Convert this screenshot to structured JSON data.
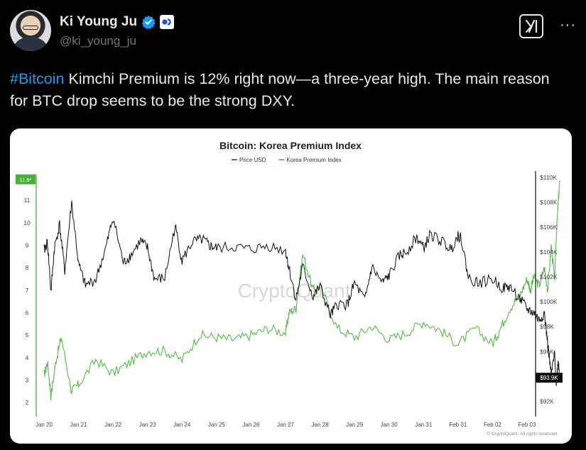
{
  "author": {
    "display_name": "Ki Young Ju",
    "handle": "@ki_young_ju"
  },
  "tweet": {
    "hashtag": "#Bitcoin",
    "text": " Kimchi Premium is 12% right now—a three-year high. The main reason for BTC drop seems to be the strong DXY."
  },
  "icons": {
    "verified": "verified-check-icon",
    "affiliate": "affiliate-badge-icon",
    "grok": "grok-icon",
    "more": "more-dots-icon"
  },
  "colors": {
    "link": "#1d9bf0",
    "verified": "#1d9bf0",
    "premium_line": "#55b94a",
    "price_line": "#111111",
    "premium_callout": "#4caf3c"
  },
  "chart_data": {
    "type": "line",
    "title": "Bitcoin: Korea Premium Index",
    "legend": [
      {
        "name": "Price USD",
        "color": "#111111"
      },
      {
        "name": "Korea Premium Index",
        "color": "#3b5bdb"
      }
    ],
    "watermark": "CryptoQuant",
    "copyright": "© CryptoQuant. All rights reserved",
    "x_tick_labels": [
      "Jan 20",
      "Jan 21",
      "Jan 22",
      "Jan 23",
      "Jan 24",
      "Jan 25",
      "Jan 26",
      "Jan 27",
      "Jan 28",
      "Jan 29",
      "Jan 30",
      "Jan 31",
      "Feb 01",
      "Feb 02",
      "Feb 03"
    ],
    "left_axis": {
      "ticks": [
        2,
        3,
        4,
        5,
        6,
        7,
        8,
        9,
        10,
        11
      ],
      "ylim": [
        1.5,
        12.3
      ],
      "callout": "11.9*"
    },
    "right_axis": {
      "ticks": [
        "$92K",
        "$94K",
        "$96K",
        "$98K",
        "$100K",
        "$102K",
        "$104K",
        "$106K",
        "$108K",
        "$110K"
      ],
      "ylim": [
        91000,
        110500
      ],
      "callout": "$93.9K"
    },
    "series": [
      {
        "name": "Korea Premium Index",
        "axis": "left",
        "x": [
          0,
          0.1,
          0.2,
          0.35,
          0.5,
          0.8,
          1.0,
          1.5,
          2.0,
          2.5,
          3.0,
          3.5,
          4.0,
          4.5,
          5.0,
          5.5,
          6.0,
          6.5,
          7.0,
          7.1,
          7.3,
          7.5,
          7.8,
          8.0,
          8.5,
          9.0,
          9.5,
          10.0,
          10.5,
          11.0,
          11.5,
          12.0,
          12.5,
          13.0,
          13.2,
          13.5,
          13.8,
          14.0,
          14.1,
          14.2,
          14.35,
          14.5,
          14.6,
          14.7,
          14.8,
          14.85,
          14.9,
          14.95
        ],
        "values": [
          3.2,
          3.8,
          2.3,
          3.9,
          4.9,
          2.5,
          2.8,
          3.9,
          3.3,
          3.8,
          4.3,
          4.3,
          3.9,
          5.0,
          4.9,
          4.8,
          5.0,
          5.3,
          5.1,
          6.0,
          6.2,
          8.6,
          7.0,
          7.2,
          5.3,
          4.9,
          5.4,
          4.8,
          5.1,
          5.6,
          5.2,
          4.6,
          5.3,
          4.6,
          5.2,
          6.2,
          6.8,
          7.5,
          7.0,
          7.6,
          7.2,
          8.0,
          7.0,
          9.0,
          7.4,
          9.5,
          10.8,
          11.9
        ]
      },
      {
        "name": "Price USD",
        "axis": "right",
        "x": [
          0,
          0.1,
          0.2,
          0.3,
          0.45,
          0.6,
          0.8,
          1.0,
          1.2,
          1.5,
          1.8,
          2.0,
          2.3,
          2.5,
          2.8,
          3.0,
          3.2,
          3.5,
          3.8,
          4.0,
          4.3,
          4.6,
          4.8,
          5.0,
          5.5,
          6.0,
          6.5,
          7.0,
          7.1,
          7.3,
          7.5,
          7.8,
          8.0,
          8.3,
          8.5,
          8.8,
          9.0,
          9.3,
          9.5,
          9.8,
          10.0,
          10.3,
          10.5,
          10.8,
          11.0,
          11.2,
          11.5,
          11.8,
          12.0,
          12.1,
          12.3,
          12.6,
          13.0,
          13.3,
          13.5,
          13.8,
          14.0,
          14.2,
          14.35,
          14.5,
          14.6,
          14.7,
          14.8,
          14.85,
          14.9,
          14.95
        ],
        "values": [
          104100,
          104800,
          100800,
          104300,
          106200,
          102500,
          108000,
          103000,
          101300,
          101800,
          104400,
          106800,
          103100,
          103700,
          104900,
          104300,
          101800,
          101900,
          106100,
          103300,
          104800,
          105000,
          104500,
          104300,
          104400,
          104200,
          104500,
          104100,
          102700,
          100200,
          102800,
          100400,
          101200,
          98900,
          99800,
          99800,
          101500,
          100100,
          102800,
          101500,
          102100,
          103700,
          104000,
          105200,
          104300,
          105400,
          104900,
          104200,
          105400,
          105000,
          101900,
          101500,
          101800,
          101100,
          101200,
          100200,
          99400,
          99100,
          98500,
          99100,
          96600,
          94100,
          95800,
          93300,
          95400,
          93900
        ]
      }
    ]
  }
}
